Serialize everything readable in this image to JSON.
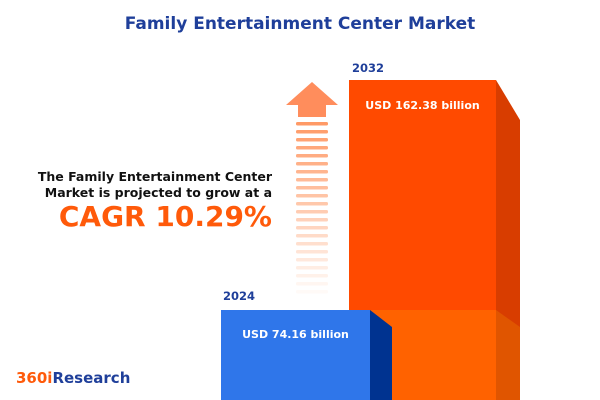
{
  "title": "Family Entertainment Center Market",
  "description_line1": "The Family Entertainment Center",
  "description_line2": "Market is projected to grow at a",
  "cagr_text": "CAGR 10.29%",
  "logo": {
    "part1": "360i",
    "part2": "Research"
  },
  "colors": {
    "bar_2024": "#2f76ea",
    "bar_2032": "#ff4a00",
    "title": "#1f3f9a",
    "accent": "#ff5a0a"
  },
  "chart_data": {
    "type": "bar",
    "title": "Family Entertainment Center Market",
    "categories": [
      "2024",
      "2032"
    ],
    "values": [
      74.16,
      162.38
    ],
    "unit": "USD billion",
    "data_labels": [
      "USD 74.16 billion",
      "USD 162.38 billion"
    ],
    "cagr_percent": 10.29
  }
}
